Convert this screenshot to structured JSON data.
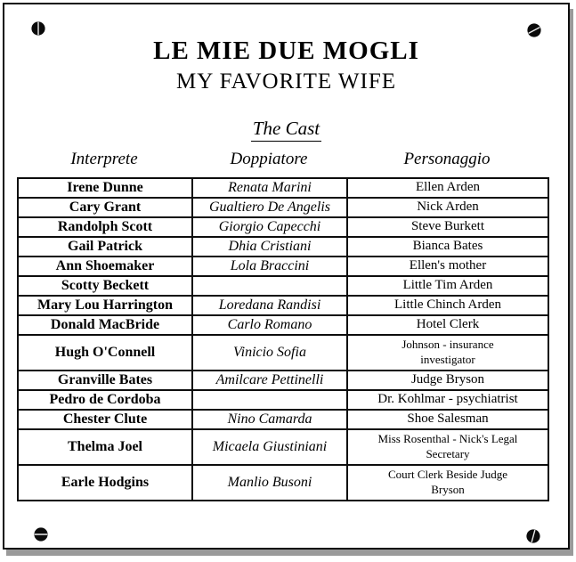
{
  "header": {
    "title": "LE MIE DUE MOGLI",
    "subtitle": "MY FAVORITE WIFE",
    "section_heading": "The Cast"
  },
  "cast_table": {
    "columns": [
      "Interprete",
      "Doppiatore",
      "Personaggio"
    ],
    "rows": [
      {
        "interprete": "Irene Dunne",
        "doppiatore": "Renata Marini",
        "personaggio": "Ellen Arden"
      },
      {
        "interprete": "Cary Grant",
        "doppiatore": "Gualtiero De Angelis",
        "personaggio": "Nick Arden"
      },
      {
        "interprete": "Randolph Scott",
        "doppiatore": "Giorgio Capecchi",
        "personaggio": "Steve Burkett"
      },
      {
        "interprete": "Gail Patrick",
        "doppiatore": "Dhia Cristiani",
        "personaggio": "Bianca Bates"
      },
      {
        "interprete": "Ann Shoemaker",
        "doppiatore": "Lola Braccini",
        "personaggio": "Ellen's mother"
      },
      {
        "interprete": "Scotty Beckett",
        "doppiatore": "",
        "personaggio": "Little Tim Arden"
      },
      {
        "interprete": "Mary Lou Harrington",
        "doppiatore": "Loredana Randisi",
        "personaggio": "Little Chinch Arden"
      },
      {
        "interprete": "Donald MacBride",
        "doppiatore": "Carlo Romano",
        "personaggio": "Hotel Clerk"
      },
      {
        "interprete": "Hugh O'Connell",
        "doppiatore": "Vinicio Sofia",
        "personaggio": [
          "Johnson - insurance",
          "investigator"
        ]
      },
      {
        "interprete": "Granville Bates",
        "doppiatore": "Amilcare Pettinelli",
        "personaggio": "Judge Bryson"
      },
      {
        "interprete": "Pedro de Cordoba",
        "doppiatore": "",
        "personaggio": "Dr. Kohlmar - psychiatrist"
      },
      {
        "interprete": "Chester Clute",
        "doppiatore": "Nino Camarda",
        "personaggio": "Shoe Salesman"
      },
      {
        "interprete": "Thelma Joel",
        "doppiatore": "Micaela Giustiniani",
        "personaggio": [
          "Miss Rosenthal - Nick's Legal",
          "Secretary"
        ]
      },
      {
        "interprete": "Earle Hodgins",
        "doppiatore": "Manlio Busoni",
        "personaggio": [
          "Court Clerk Beside Judge",
          "Bryson"
        ]
      }
    ]
  },
  "decor": {
    "screws": [
      "screw-top-left-icon",
      "screw-top-right-icon",
      "screw-bottom-left-icon",
      "screw-bottom-right-icon"
    ]
  },
  "colors": {
    "ink": "#000000",
    "paper": "#ffffff",
    "shadow": "#9a9a9a"
  }
}
